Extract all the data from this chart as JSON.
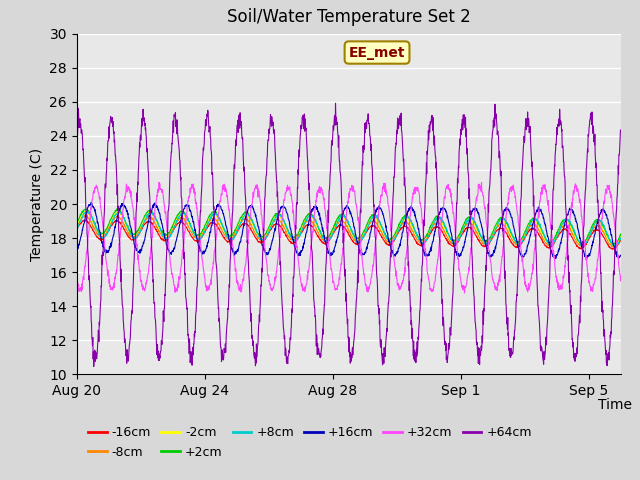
{
  "title": "Soil/Water Temperature Set 2",
  "xlabel": "Time",
  "ylabel": "Temperature (C)",
  "ylim": [
    10,
    30
  ],
  "yticks": [
    10,
    12,
    14,
    16,
    18,
    20,
    22,
    24,
    26,
    28,
    30
  ],
  "fig_bg": "#d8d8d8",
  "plot_bg": "#e8e8e8",
  "annotation_text": "EE_met",
  "annotation_bg": "#ffffc0",
  "annotation_border": "#a08000",
  "annotation_text_color": "#880000",
  "series_order": [
    "-16cm",
    "-8cm",
    "-2cm",
    "+2cm",
    "+8cm",
    "+16cm",
    "+32cm",
    "+64cm"
  ],
  "series": {
    "-16cm": {
      "color": "#ff0000",
      "base": 18.5,
      "amp": 0.55,
      "trend": -0.035,
      "phase": 0.0
    },
    "-8cm": {
      "color": "#ff8800",
      "base": 18.7,
      "amp": 0.6,
      "trend": -0.035,
      "phase": 0.1
    },
    "-2cm": {
      "color": "#ffff00",
      "base": 18.9,
      "amp": 0.65,
      "trend": -0.038,
      "phase": 0.15
    },
    "+2cm": {
      "color": "#00cc00",
      "base": 19.0,
      "amp": 0.7,
      "trend": -0.038,
      "phase": 0.2
    },
    "+8cm": {
      "color": "#00cccc",
      "base": 18.8,
      "amp": 0.75,
      "trend": -0.03,
      "phase": 0.4
    },
    "+16cm": {
      "color": "#0000bb",
      "base": 18.6,
      "amp": 1.4,
      "trend": -0.02,
      "phase": 1.2
    },
    "+32cm": {
      "color": "#ff44ff",
      "base": 18.0,
      "amp": 3.0,
      "trend": 0.0,
      "phase": 2.2
    },
    "+64cm": {
      "color": "#8800aa",
      "base": 18.0,
      "amp": 7.0,
      "trend": 0.0,
      "phase": 5.2
    }
  },
  "n_points": 1700,
  "start_day": 0,
  "end_day": 17,
  "x_ticks_labels": [
    "Aug 20",
    "Aug 24",
    "Aug 28",
    "Sep 1",
    "Sep 5"
  ],
  "x_ticks_positions": [
    0,
    4,
    8,
    12,
    16
  ],
  "legend_row1": [
    "-16cm",
    "-8cm",
    "-2cm",
    "+2cm",
    "+8cm",
    "+16cm"
  ],
  "legend_row2": [
    "+32cm",
    "+64cm"
  ],
  "legend_colors": {
    "-16cm": "#ff0000",
    "-8cm": "#ff8800",
    "-2cm": "#ffff00",
    "+2cm": "#00cc00",
    "+8cm": "#00cccc",
    "+16cm": "#0000bb",
    "+32cm": "#ff44ff",
    "+64cm": "#8800aa"
  }
}
